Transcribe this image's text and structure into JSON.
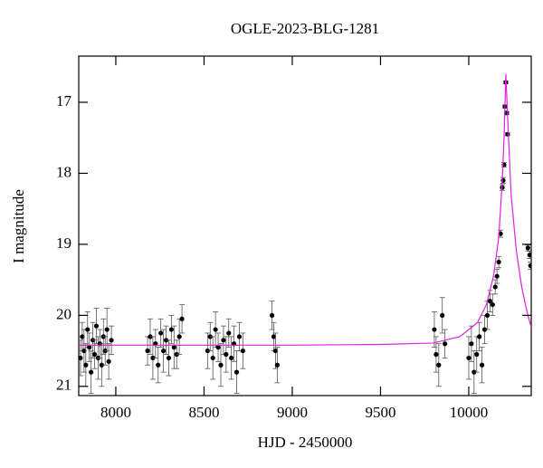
{
  "chart_data": {
    "type": "scatter",
    "title": "OGLE-2023-BLG-1281",
    "xlabel": "HJD - 2450000",
    "ylabel": "I magnitude",
    "xlim": [
      7790,
      10354
    ],
    "ylim": [
      16.35,
      21.13
    ],
    "invert_y": true,
    "xticks": [
      8000,
      8500,
      9000,
      9500,
      10000
    ],
    "yticks": [
      17,
      18,
      19,
      20,
      21
    ],
    "series": [
      {
        "color": "#000000",
        "style": "points",
        "x": [
          7800,
          7810,
          7820,
          7830,
          7840,
          7850,
          7860,
          7870,
          7880,
          7890,
          7900,
          7910,
          7920,
          7930,
          7940,
          7950,
          7960,
          7975,
          8180,
          8195,
          8210,
          8225,
          8240,
          8255,
          8270,
          8285,
          8300,
          8315,
          8330,
          8345,
          8360,
          8375,
          8520,
          8535,
          8550,
          8565,
          8580,
          8595,
          8610,
          8625,
          8640,
          8655,
          8670,
          8685,
          8700,
          8720,
          8885,
          8895,
          8905,
          8915,
          9805,
          9815,
          9830,
          9850,
          9865,
          10000,
          10015,
          10030,
          10045,
          10060,
          10075,
          10090,
          10105,
          10120,
          10135,
          10150,
          10160,
          10170,
          10180,
          10190,
          10195,
          10200,
          10205,
          10210,
          10215,
          10220,
          10335,
          10345,
          10350
        ],
        "values": [
          20.6,
          20.3,
          20.5,
          20.7,
          20.2,
          20.45,
          20.8,
          20.35,
          20.55,
          20.15,
          20.6,
          20.4,
          20.7,
          20.3,
          20.5,
          20.2,
          20.65,
          20.35,
          20.5,
          20.3,
          20.6,
          20.4,
          20.7,
          20.25,
          20.5,
          20.35,
          20.6,
          20.2,
          20.45,
          20.55,
          20.3,
          20.05,
          20.5,
          20.3,
          20.6,
          20.2,
          20.45,
          20.7,
          20.35,
          20.55,
          20.25,
          20.6,
          20.4,
          20.8,
          20.3,
          20.5,
          20.0,
          20.3,
          20.5,
          20.7,
          20.2,
          20.55,
          20.7,
          20.0,
          20.4,
          20.6,
          20.4,
          20.8,
          20.55,
          20.3,
          20.7,
          20.2,
          20.0,
          19.8,
          19.85,
          19.6,
          19.45,
          19.25,
          18.85,
          18.2,
          18.1,
          17.88,
          17.06,
          16.72,
          17.15,
          17.45,
          19.05,
          19.15,
          19.3
        ],
        "errors": [
          0.25,
          0.2,
          0.3,
          0.3,
          0.25,
          0.2,
          0.3,
          0.25,
          0.2,
          0.25,
          0.3,
          0.2,
          0.3,
          0.25,
          0.2,
          0.3,
          0.25,
          0.2,
          0.2,
          0.25,
          0.3,
          0.2,
          0.25,
          0.2,
          0.3,
          0.2,
          0.25,
          0.2,
          0.3,
          0.2,
          0.25,
          0.2,
          0.25,
          0.2,
          0.3,
          0.25,
          0.2,
          0.3,
          0.2,
          0.25,
          0.2,
          0.3,
          0.25,
          0.3,
          0.2,
          0.25,
          0.2,
          0.2,
          0.25,
          0.25,
          0.25,
          0.25,
          0.3,
          0.25,
          0.2,
          0.3,
          0.25,
          0.3,
          0.25,
          0.2,
          0.25,
          0.2,
          0.2,
          0.15,
          0.15,
          0.1,
          0.1,
          0.08,
          0.05,
          0.04,
          0.04,
          0.03,
          0.02,
          0.02,
          0.02,
          0.02,
          0.04,
          0.05,
          0.05
        ]
      },
      {
        "color": "#e020e0",
        "style": "line",
        "x": [
          7790,
          9000,
          9500,
          9800,
          9950,
          10050,
          10100,
          10140,
          10170,
          10190,
          10200,
          10210,
          10220,
          10240,
          10270,
          10300,
          10330,
          10354
        ],
        "values": [
          20.42,
          20.42,
          20.41,
          20.39,
          20.3,
          20.1,
          19.85,
          19.45,
          18.9,
          18.1,
          17.5,
          16.6,
          17.2,
          18.3,
          19.1,
          19.6,
          19.95,
          20.17
        ]
      }
    ]
  }
}
